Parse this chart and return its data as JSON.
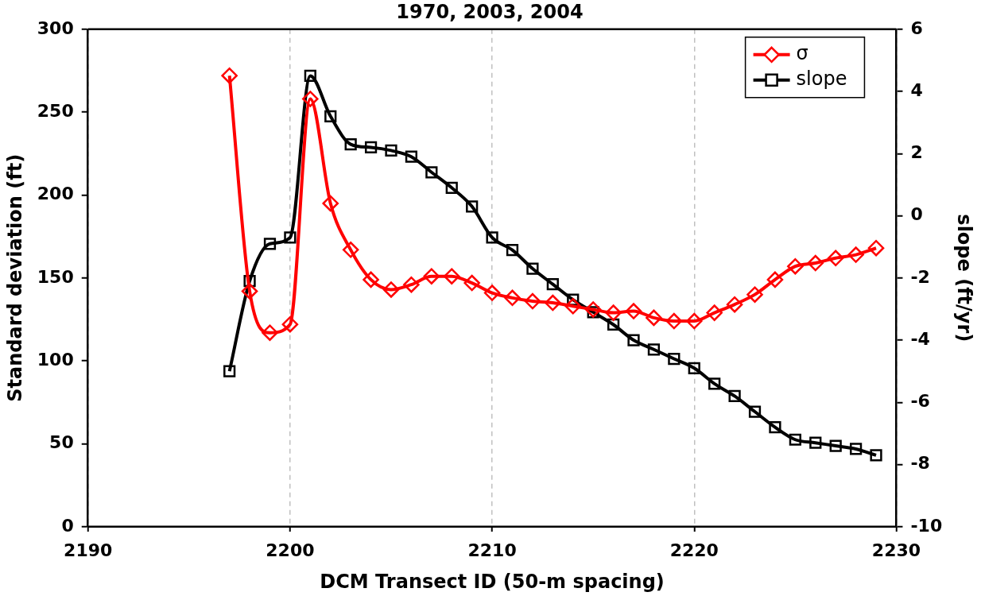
{
  "chart_data": {
    "type": "line",
    "title": "1970, 2003, 2004",
    "xlabel": "DCM Transect ID (50-m spacing)",
    "ylabel": "Standard deviation (ft)",
    "y2label": "slope (ft/yr)",
    "x": [
      2197,
      2198,
      2199,
      2200,
      2201,
      2202,
      2203,
      2204,
      2205,
      2206,
      2207,
      2208,
      2209,
      2210,
      2211,
      2212,
      2213,
      2214,
      2215,
      2216,
      2217,
      2218,
      2219,
      2220,
      2221,
      2222,
      2223,
      2224,
      2225,
      2226,
      2227,
      2228,
      2229
    ],
    "series": [
      {
        "name": "σ",
        "color": "#ff0000",
        "marker": "diamond",
        "values": [
          272,
          142,
          117,
          122,
          258,
          195,
          167,
          149,
          143,
          146,
          151,
          151,
          147,
          141,
          138,
          136,
          135,
          133,
          131,
          129,
          130,
          126,
          124,
          124,
          129,
          134,
          140,
          149,
          157,
          159,
          162,
          164,
          168
        ]
      },
      {
        "name": "slope",
        "color": "#000000",
        "marker": "square",
        "axis": "y2",
        "values": [
          -5.0,
          -2.1,
          -0.9,
          -0.7,
          4.5,
          3.2,
          2.3,
          2.2,
          2.1,
          1.9,
          1.4,
          0.9,
          0.3,
          -0.7,
          -1.1,
          -1.7,
          -2.2,
          -2.7,
          -3.1,
          -3.5,
          -4.0,
          -4.3,
          -4.6,
          -4.9,
          -5.4,
          -5.8,
          -6.3,
          -6.8,
          -7.2,
          -7.3,
          -7.4,
          -7.5,
          -7.7
        ]
      }
    ],
    "xlim": [
      2190,
      2230
    ],
    "xticks": [
      2190,
      2200,
      2210,
      2220,
      2230
    ],
    "ylim": [
      0,
      300
    ],
    "yticks": [
      0,
      50,
      100,
      150,
      200,
      250,
      300
    ],
    "y2lim": [
      -10,
      6
    ],
    "y2ticks": [
      -10,
      -8,
      -6,
      -4,
      -2,
      0,
      2,
      4,
      6
    ],
    "grid": "x",
    "legend": "top right"
  }
}
